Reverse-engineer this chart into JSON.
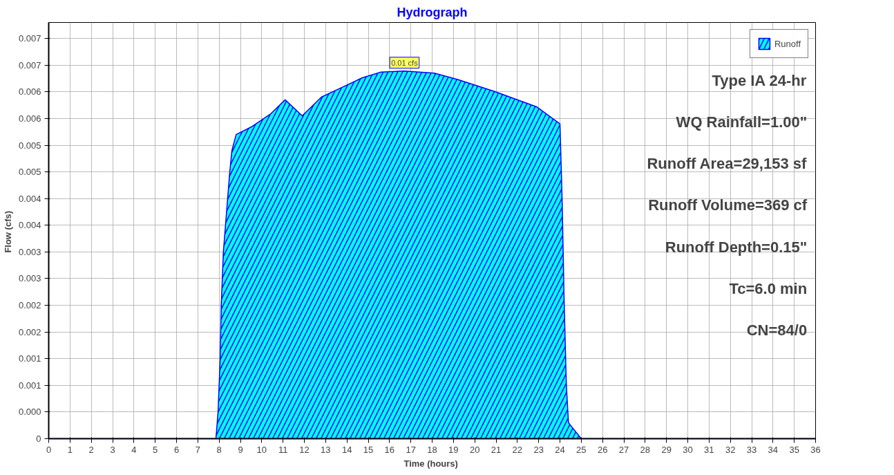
{
  "chart_data": {
    "type": "area",
    "title": "Hydrograph",
    "xlabel": "Time  (hours)",
    "ylabel": "Flow  (cfs)",
    "x": [
      0,
      7.85,
      7.95,
      8.05,
      8.1,
      8.2,
      8.3,
      8.4,
      8.5,
      8.6,
      8.8,
      9.5,
      10.4,
      11.1,
      11.9,
      12.8,
      13.7,
      14.7,
      15.6,
      16.7,
      18.1,
      19.2,
      20.9,
      22.9,
      24.0,
      24.1,
      24.2,
      24.3,
      24.4,
      25,
      36
    ],
    "series": [
      {
        "name": "Runoff",
        "color": "#00ffff",
        "values": [
          0,
          0,
          0.0005,
          0.0015,
          0.0025,
          0.0035,
          0.004,
          0.0045,
          0.005,
          0.0054,
          0.0057,
          0.00584,
          0.00608,
          0.00635,
          0.00605,
          0.0064,
          0.00657,
          0.00676,
          0.00687,
          0.00689,
          0.00685,
          0.00673,
          0.00651,
          0.00622,
          0.0059,
          0.0045,
          0.0025,
          0.001,
          0.0003,
          0,
          0
        ]
      }
    ],
    "xlim": [
      0,
      36
    ],
    "xticks": [
      0,
      1,
      2,
      3,
      4,
      5,
      6,
      7,
      8,
      9,
      10,
      11,
      12,
      13,
      14,
      15,
      16,
      17,
      18,
      19,
      20,
      21,
      22,
      23,
      24,
      25,
      26,
      27,
      28,
      29,
      30,
      31,
      32,
      33,
      34,
      35,
      36
    ],
    "ylim": [
      0,
      0.0078
    ],
    "yticks": [
      0,
      {
        "value": 0.0005,
        "label": "0.000"
      },
      {
        "value": 0.001,
        "label": "0.001"
      },
      {
        "value": 0.0015,
        "label": "0.001"
      },
      {
        "value": 0.002,
        "label": "0.002"
      },
      {
        "value": 0.0025,
        "label": "0.002"
      },
      {
        "value": 0.003,
        "label": "0.003"
      },
      {
        "value": 0.0035,
        "label": "0.003"
      },
      {
        "value": 0.004,
        "label": "0.004"
      },
      {
        "value": 0.0045,
        "label": "0.004"
      },
      {
        "value": 0.005,
        "label": "0.005"
      },
      {
        "value": 0.0055,
        "label": "0.005"
      },
      {
        "value": 0.006,
        "label": "0.006"
      },
      {
        "value": 0.0065,
        "label": "0.006"
      },
      {
        "value": 0.007,
        "label": "0.007"
      },
      {
        "value": 0.0075,
        "label": "0.007"
      }
    ],
    "grid": true,
    "legend": "top right",
    "marker": "none",
    "annotations": [
      {
        "text": "0.01 cfs",
        "x": 16.7,
        "y": 0.00689
      },
      "Type IA 24-hr",
      "WQ Rainfall=1.00\"",
      "Runoff Area=29,153 sf",
      "Runoff Volume=369 cf",
      "Runoff Depth=0.15\"",
      "Tc=6.0 min",
      "CN=84/0"
    ]
  }
}
